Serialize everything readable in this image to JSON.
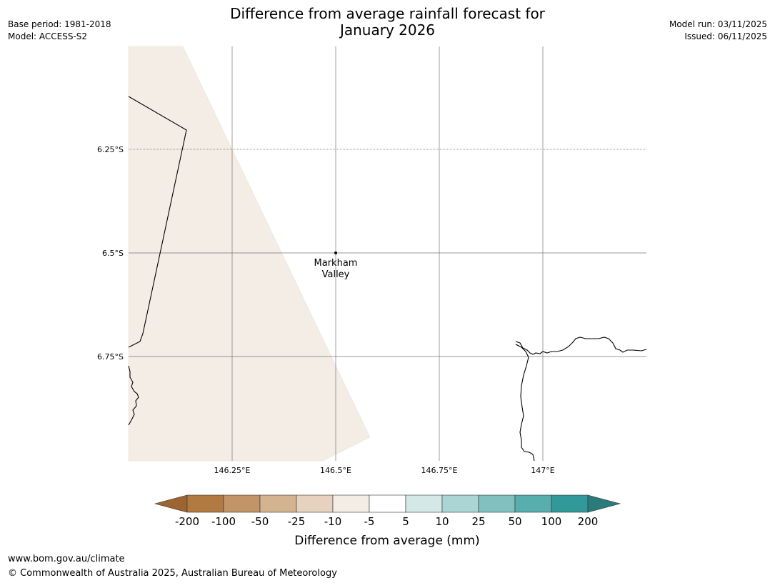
{
  "header": {
    "base_period": "Base period: 1981-2018",
    "model": "Model: ACCESS-S2",
    "model_run": "Model run: 03/11/2025",
    "issued": "Issued: 06/11/2025",
    "title_line1": "Difference from average rainfall forecast for",
    "title_line2": "January 2026"
  },
  "map": {
    "lat_labels": [
      "6.25°S",
      "6.5°S",
      "6.75°S"
    ],
    "lon_labels": [
      "146.25°E",
      "146.5°E",
      "146.75°E",
      "147°E"
    ],
    "location": {
      "name_line1": "Markham",
      "name_line2": "Valley",
      "lon": 146.5,
      "lat": -6.5
    },
    "forecast_fill_category": "-10 to -5",
    "colors": {
      "land_shade": "#f4ede6",
      "grid": "#555555",
      "coast": "#000000"
    }
  },
  "legend": {
    "title": "Difference from average (mm)",
    "tick_labels": [
      "-200",
      "-100",
      "-50",
      "-25",
      "-10",
      "-5",
      "5",
      "10",
      "25",
      "50",
      "100",
      "200"
    ],
    "colors": [
      "#9b6431",
      "#b07a41",
      "#c29468",
      "#d4b391",
      "#e6d2bf",
      "#f4ede6",
      "#ffffff",
      "#d5e8e8",
      "#abd5d5",
      "#80c1bf",
      "#58aeac",
      "#31999a",
      "#2a7b7b"
    ]
  },
  "footer": {
    "url": "www.bom.gov.au/climate",
    "copyright": "© Commonwealth of Australia 2025, Australian Bureau of Meteorology"
  }
}
